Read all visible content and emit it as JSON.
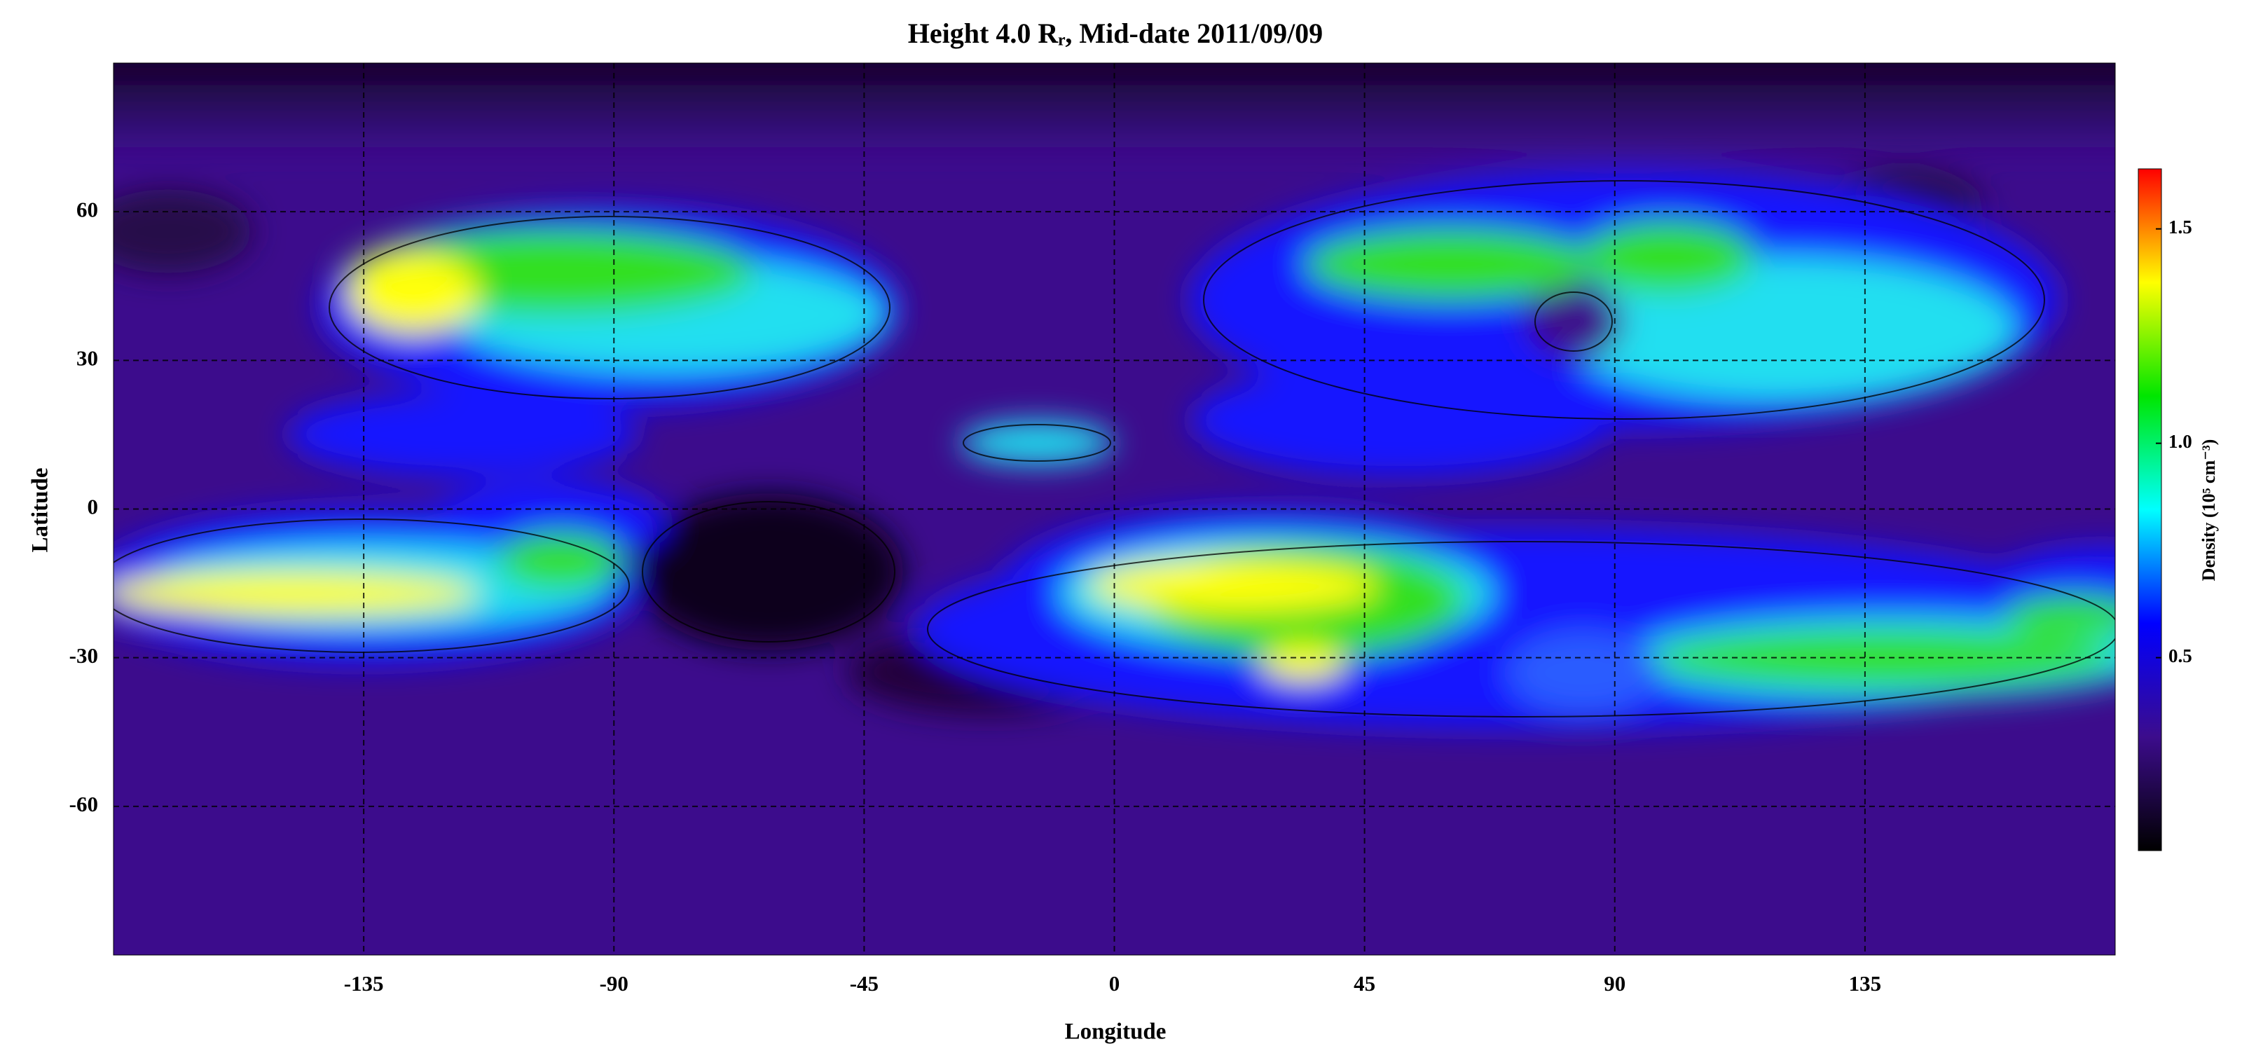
{
  "chart_data": {
    "type": "heatmap",
    "title": "Height 4.0 Rᵣ, Mid-date 2011/09/09",
    "x_label": "Longitude",
    "y_label": "Latitude",
    "colorbar_label": "Density (10⁵ cm⁻³)",
    "xlim": [
      -180,
      180
    ],
    "ylim": [
      -90,
      90
    ],
    "xticks": [
      -135,
      -90,
      -45,
      0,
      45,
      90,
      135
    ],
    "yticks": [
      -60,
      -30,
      0,
      30,
      60
    ],
    "clim": [
      0.05,
      1.64
    ],
    "cticks": [
      0.5,
      {
        "value": 1,
        "label": "1.0"
      },
      1.5
    ],
    "colormap": [
      "#000000",
      "#3c0c8c",
      "#0000ff",
      "#00ffff",
      "#00e600",
      "#ffff00",
      "#ff0000"
    ],
    "grid": true
  }
}
